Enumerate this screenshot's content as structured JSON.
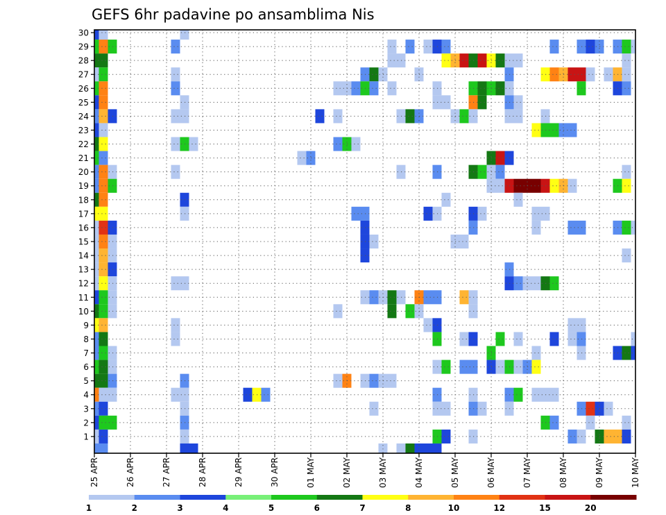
{
  "chart_data": {
    "type": "heatmap",
    "title": "GEFS 6hr padavine po ansamblima Nis",
    "xlabel": "",
    "ylabel": "",
    "y_members": [
      1,
      30
    ],
    "x_tick_labels": [
      "25 APR",
      "26 APR",
      "27 APR",
      "28 APR",
      "29 APR",
      "30 APR",
      "01 MAY",
      "02 MAY",
      "03 MAY",
      "04 MAY",
      "05 MAY",
      "06 MAY",
      "07 MAY",
      "08 MAY",
      "09 MAY",
      "10 MAY"
    ],
    "y_tick_labels": [
      "1",
      "2",
      "3",
      "4",
      "5",
      "6",
      "7",
      "8",
      "9",
      "10",
      "11",
      "12",
      "13",
      "14",
      "15",
      "16",
      "17",
      "18",
      "19",
      "20",
      "21",
      "22",
      "23",
      "24",
      "25",
      "26",
      "27",
      "28",
      "29",
      "30"
    ],
    "time_steps": 61,
    "steps_per_day": 4,
    "grid": true,
    "legend_position": "bottom",
    "legend": {
      "tick_labels": [
        "1",
        "2",
        "3",
        "4",
        "5",
        "6",
        "7",
        "8",
        "10",
        "12",
        "15",
        "20"
      ],
      "colors": [
        "#b4c8f0",
        "#5a8cf0",
        "#1e46dc",
        "#78f078",
        "#1ec81e",
        "#147814",
        "#ffff14",
        "#ffb432",
        "#ff8214",
        "#e13214",
        "#c81414",
        "#780000"
      ]
    },
    "cells": [
      [
        0,
        30,
        3
      ],
      [
        1,
        30,
        1
      ],
      [
        10,
        30,
        1
      ],
      [
        0,
        29,
        5
      ],
      [
        1,
        29,
        9
      ],
      [
        2,
        29,
        5
      ],
      [
        9,
        29,
        2
      ],
      [
        33,
        29,
        1
      ],
      [
        35,
        29,
        2
      ],
      [
        37,
        29,
        1
      ],
      [
        38,
        29,
        3
      ],
      [
        39,
        29,
        2
      ],
      [
        51,
        29,
        2
      ],
      [
        54,
        29,
        2
      ],
      [
        55,
        29,
        3
      ],
      [
        56,
        29,
        2
      ],
      [
        58,
        29,
        2
      ],
      [
        59,
        29,
        5
      ],
      [
        60,
        29,
        1
      ],
      [
        0,
        28,
        6
      ],
      [
        1,
        28,
        6
      ],
      [
        33,
        28,
        1
      ],
      [
        34,
        28,
        1
      ],
      [
        39,
        28,
        7
      ],
      [
        40,
        28,
        8
      ],
      [
        41,
        28,
        11
      ],
      [
        42,
        28,
        6
      ],
      [
        43,
        28,
        11
      ],
      [
        44,
        28,
        7
      ],
      [
        45,
        28,
        6
      ],
      [
        46,
        28,
        1
      ],
      [
        47,
        28,
        1
      ],
      [
        59,
        28,
        1
      ],
      [
        0,
        27,
        1
      ],
      [
        1,
        27,
        5
      ],
      [
        9,
        27,
        1
      ],
      [
        30,
        27,
        2
      ],
      [
        31,
        27,
        6
      ],
      [
        32,
        27,
        1
      ],
      [
        36,
        27,
        1
      ],
      [
        46,
        27,
        2
      ],
      [
        50,
        27,
        7
      ],
      [
        51,
        27,
        9
      ],
      [
        52,
        27,
        8
      ],
      [
        53,
        27,
        11
      ],
      [
        54,
        27,
        11
      ],
      [
        55,
        27,
        1
      ],
      [
        57,
        27,
        1
      ],
      [
        58,
        27,
        8
      ],
      [
        59,
        27,
        1
      ],
      [
        0,
        26,
        5
      ],
      [
        1,
        26,
        9
      ],
      [
        9,
        26,
        2
      ],
      [
        27,
        26,
        1
      ],
      [
        28,
        26,
        1
      ],
      [
        29,
        26,
        2
      ],
      [
        30,
        26,
        5
      ],
      [
        31,
        26,
        2
      ],
      [
        33,
        26,
        1
      ],
      [
        38,
        26,
        1
      ],
      [
        42,
        26,
        5
      ],
      [
        43,
        26,
        6
      ],
      [
        44,
        26,
        5
      ],
      [
        45,
        26,
        6
      ],
      [
        46,
        26,
        1
      ],
      [
        54,
        26,
        5
      ],
      [
        58,
        26,
        3
      ],
      [
        59,
        26,
        2
      ],
      [
        0,
        25,
        3
      ],
      [
        1,
        25,
        9
      ],
      [
        10,
        25,
        1
      ],
      [
        38,
        25,
        1
      ],
      [
        39,
        25,
        1
      ],
      [
        42,
        25,
        9
      ],
      [
        43,
        25,
        6
      ],
      [
        46,
        25,
        2
      ],
      [
        47,
        25,
        1
      ],
      [
        0,
        24,
        2
      ],
      [
        1,
        24,
        8
      ],
      [
        2,
        24,
        3
      ],
      [
        9,
        24,
        1
      ],
      [
        10,
        24,
        1
      ],
      [
        25,
        24,
        3
      ],
      [
        27,
        24,
        1
      ],
      [
        34,
        24,
        1
      ],
      [
        35,
        24,
        6
      ],
      [
        36,
        24,
        2
      ],
      [
        40,
        24,
        1
      ],
      [
        41,
        24,
        5
      ],
      [
        42,
        24,
        1
      ],
      [
        46,
        24,
        1
      ],
      [
        47,
        24,
        1
      ],
      [
        50,
        24,
        1
      ],
      [
        0,
        23,
        3
      ],
      [
        1,
        23,
        1
      ],
      [
        49,
        23,
        7
      ],
      [
        50,
        23,
        5
      ],
      [
        51,
        23,
        5
      ],
      [
        52,
        23,
        2
      ],
      [
        53,
        23,
        2
      ],
      [
        0,
        22,
        6
      ],
      [
        1,
        22,
        7
      ],
      [
        9,
        22,
        1
      ],
      [
        10,
        22,
        5
      ],
      [
        11,
        22,
        1
      ],
      [
        27,
        22,
        2
      ],
      [
        28,
        22,
        5
      ],
      [
        29,
        22,
        1
      ],
      [
        0,
        21,
        5
      ],
      [
        1,
        21,
        2
      ],
      [
        23,
        21,
        1
      ],
      [
        24,
        21,
        2
      ],
      [
        44,
        21,
        6
      ],
      [
        45,
        21,
        11
      ],
      [
        46,
        21,
        3
      ],
      [
        0,
        20,
        2
      ],
      [
        1,
        20,
        9
      ],
      [
        2,
        20,
        1
      ],
      [
        9,
        20,
        1
      ],
      [
        34,
        20,
        1
      ],
      [
        38,
        20,
        2
      ],
      [
        42,
        20,
        6
      ],
      [
        43,
        20,
        5
      ],
      [
        44,
        20,
        1
      ],
      [
        45,
        20,
        2
      ],
      [
        59,
        20,
        1
      ],
      [
        0,
        19,
        2
      ],
      [
        1,
        19,
        9
      ],
      [
        2,
        19,
        5
      ],
      [
        44,
        19,
        1
      ],
      [
        45,
        19,
        1
      ],
      [
        46,
        19,
        11
      ],
      [
        47,
        19,
        12
      ],
      [
        48,
        19,
        12
      ],
      [
        49,
        19,
        12
      ],
      [
        50,
        19,
        11
      ],
      [
        51,
        19,
        7
      ],
      [
        52,
        19,
        8
      ],
      [
        53,
        19,
        1
      ],
      [
        58,
        19,
        5
      ],
      [
        59,
        19,
        7
      ],
      [
        0,
        18,
        6
      ],
      [
        1,
        18,
        9
      ],
      [
        10,
        18,
        3
      ],
      [
        39,
        18,
        1
      ],
      [
        47,
        18,
        1
      ],
      [
        0,
        17,
        7
      ],
      [
        1,
        17,
        7
      ],
      [
        10,
        17,
        1
      ],
      [
        29,
        17,
        2
      ],
      [
        30,
        17,
        2
      ],
      [
        37,
        17,
        3
      ],
      [
        38,
        17,
        1
      ],
      [
        42,
        17,
        3
      ],
      [
        43,
        17,
        1
      ],
      [
        49,
        17,
        1
      ],
      [
        50,
        17,
        1
      ],
      [
        0,
        16,
        1
      ],
      [
        1,
        16,
        10
      ],
      [
        2,
        16,
        3
      ],
      [
        30,
        16,
        3
      ],
      [
        42,
        16,
        2
      ],
      [
        49,
        16,
        1
      ],
      [
        53,
        16,
        2
      ],
      [
        54,
        16,
        2
      ],
      [
        58,
        16,
        2
      ],
      [
        59,
        16,
        5
      ],
      [
        60,
        16,
        1
      ],
      [
        0,
        15,
        1
      ],
      [
        1,
        15,
        9
      ],
      [
        2,
        15,
        1
      ],
      [
        30,
        15,
        3
      ],
      [
        31,
        15,
        1
      ],
      [
        40,
        15,
        1
      ],
      [
        41,
        15,
        1
      ],
      [
        0,
        14,
        1
      ],
      [
        1,
        14,
        8
      ],
      [
        2,
        14,
        1
      ],
      [
        30,
        14,
        3
      ],
      [
        59,
        14,
        1
      ],
      [
        0,
        13,
        1
      ],
      [
        1,
        13,
        8
      ],
      [
        2,
        13,
        3
      ],
      [
        46,
        13,
        2
      ],
      [
        0,
        12,
        1
      ],
      [
        1,
        12,
        7
      ],
      [
        2,
        12,
        1
      ],
      [
        9,
        12,
        1
      ],
      [
        10,
        12,
        1
      ],
      [
        46,
        12,
        3
      ],
      [
        47,
        12,
        2
      ],
      [
        48,
        12,
        1
      ],
      [
        49,
        12,
        1
      ],
      [
        50,
        12,
        6
      ],
      [
        51,
        12,
        5
      ],
      [
        0,
        11,
        3
      ],
      [
        1,
        11,
        5
      ],
      [
        2,
        11,
        1
      ],
      [
        30,
        11,
        1
      ],
      [
        31,
        11,
        2
      ],
      [
        32,
        11,
        1
      ],
      [
        33,
        11,
        6
      ],
      [
        34,
        11,
        1
      ],
      [
        36,
        11,
        9
      ],
      [
        37,
        11,
        2
      ],
      [
        38,
        11,
        2
      ],
      [
        41,
        11,
        8
      ],
      [
        42,
        11,
        1
      ],
      [
        0,
        10,
        6
      ],
      [
        1,
        10,
        5
      ],
      [
        2,
        10,
        1
      ],
      [
        27,
        10,
        1
      ],
      [
        33,
        10,
        6
      ],
      [
        35,
        10,
        5
      ],
      [
        36,
        10,
        1
      ],
      [
        42,
        10,
        1
      ],
      [
        0,
        9,
        7
      ],
      [
        1,
        9,
        8
      ],
      [
        9,
        9,
        1
      ],
      [
        37,
        9,
        1
      ],
      [
        38,
        9,
        3
      ],
      [
        53,
        9,
        1
      ],
      [
        54,
        9,
        1
      ],
      [
        0,
        8,
        2
      ],
      [
        1,
        8,
        6
      ],
      [
        9,
        8,
        1
      ],
      [
        38,
        8,
        5
      ],
      [
        41,
        8,
        1
      ],
      [
        42,
        8,
        3
      ],
      [
        45,
        8,
        5
      ],
      [
        47,
        8,
        1
      ],
      [
        51,
        8,
        3
      ],
      [
        53,
        8,
        1
      ],
      [
        54,
        8,
        2
      ],
      [
        60,
        8,
        1
      ],
      [
        0,
        7,
        2
      ],
      [
        1,
        7,
        5
      ],
      [
        2,
        7,
        1
      ],
      [
        44,
        7,
        5
      ],
      [
        49,
        7,
        1
      ],
      [
        54,
        7,
        1
      ],
      [
        58,
        7,
        3
      ],
      [
        59,
        7,
        6
      ],
      [
        60,
        7,
        3
      ],
      [
        0,
        6,
        5
      ],
      [
        1,
        6,
        6
      ],
      [
        2,
        6,
        1
      ],
      [
        38,
        6,
        1
      ],
      [
        39,
        6,
        5
      ],
      [
        41,
        6,
        2
      ],
      [
        42,
        6,
        2
      ],
      [
        44,
        6,
        3
      ],
      [
        45,
        6,
        1
      ],
      [
        46,
        6,
        5
      ],
      [
        47,
        6,
        1
      ],
      [
        48,
        6,
        2
      ],
      [
        49,
        6,
        7
      ],
      [
        0,
        5,
        6
      ],
      [
        1,
        5,
        6
      ],
      [
        2,
        5,
        2
      ],
      [
        10,
        5,
        2
      ],
      [
        27,
        5,
        1
      ],
      [
        28,
        5,
        9
      ],
      [
        30,
        5,
        1
      ],
      [
        31,
        5,
        2
      ],
      [
        32,
        5,
        1
      ],
      [
        33,
        5,
        1
      ],
      [
        0,
        4,
        9
      ],
      [
        1,
        4,
        1
      ],
      [
        2,
        4,
        1
      ],
      [
        9,
        4,
        1
      ],
      [
        10,
        4,
        1
      ],
      [
        17,
        4,
        3
      ],
      [
        18,
        4,
        7
      ],
      [
        19,
        4,
        2
      ],
      [
        38,
        4,
        2
      ],
      [
        42,
        4,
        1
      ],
      [
        46,
        4,
        2
      ],
      [
        47,
        4,
        5
      ],
      [
        49,
        4,
        1
      ],
      [
        50,
        4,
        1
      ],
      [
        51,
        4,
        1
      ],
      [
        0,
        3,
        2
      ],
      [
        1,
        3,
        3
      ],
      [
        10,
        3,
        1
      ],
      [
        31,
        3,
        1
      ],
      [
        38,
        3,
        1
      ],
      [
        39,
        3,
        1
      ],
      [
        42,
        3,
        2
      ],
      [
        43,
        3,
        1
      ],
      [
        46,
        3,
        1
      ],
      [
        54,
        3,
        2
      ],
      [
        55,
        3,
        10
      ],
      [
        56,
        3,
        3
      ],
      [
        57,
        3,
        1
      ],
      [
        0,
        2,
        3
      ],
      [
        1,
        2,
        5
      ],
      [
        2,
        2,
        5
      ],
      [
        10,
        2,
        2
      ],
      [
        50,
        2,
        5
      ],
      [
        51,
        2,
        2
      ],
      [
        55,
        2,
        1
      ],
      [
        59,
        2,
        1
      ],
      [
        0,
        1,
        1
      ],
      [
        1,
        1,
        3
      ],
      [
        10,
        1,
        1
      ],
      [
        38,
        1,
        5
      ],
      [
        39,
        1,
        3
      ],
      [
        42,
        1,
        1
      ],
      [
        53,
        1,
        2
      ],
      [
        54,
        1,
        1
      ],
      [
        56,
        1,
        6
      ],
      [
        57,
        1,
        8
      ],
      [
        58,
        1,
        8
      ],
      [
        59,
        1,
        3
      ],
      [
        0,
        0,
        2
      ],
      [
        1,
        0,
        2
      ],
      [
        10,
        0,
        3
      ],
      [
        11,
        0,
        3
      ],
      [
        32,
        0,
        1
      ],
      [
        34,
        0,
        1
      ],
      [
        35,
        0,
        6
      ],
      [
        36,
        0,
        3
      ],
      [
        37,
        0,
        3
      ],
      [
        38,
        0,
        3
      ]
    ]
  }
}
